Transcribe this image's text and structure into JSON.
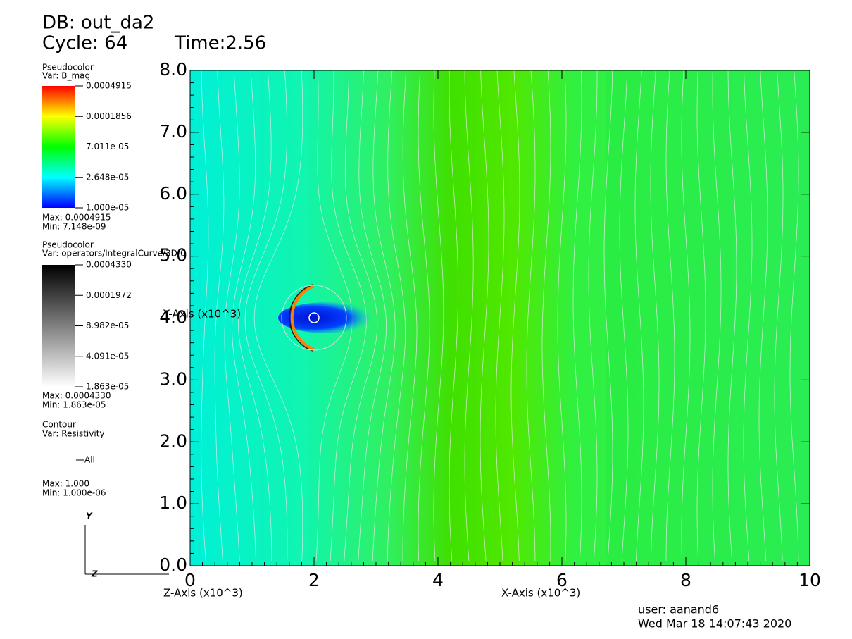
{
  "header": {
    "db": "DB: out_da2",
    "cycle": "Cycle: 64",
    "time": "Time:2.56"
  },
  "legends": [
    {
      "plot": "Pseudocolor",
      "var": "Var: B_mag",
      "ticks": [
        "0.0004915",
        "0.0001856",
        "7.011e-05",
        "2.648e-05",
        "1.000e-05"
      ],
      "max": "Max:  0.0004915",
      "min": "Min:  7.148e-09"
    },
    {
      "plot": "Pseudocolor",
      "var": "Var: operators/IntegralCurve/3D/0",
      "ticks": [
        "0.0004330",
        "0.0001972",
        "8.982e-05",
        "4.091e-05",
        "1.863e-05"
      ],
      "max": "Max:  0.0004330",
      "min": "Min:  1.863e-05"
    },
    {
      "plot": "Contour",
      "var": "Var: Resistivity",
      "level": "All",
      "max": "Max:  1.000",
      "min": "Min:  1.000e-06"
    }
  ],
  "chart_data": {
    "type": "pseudocolor",
    "xlabel": "X-Axis (x10^3)",
    "ylabel": "Y-Axis (x10^3)",
    "zlabel": "Z-Axis (x10^3)",
    "xlim": [
      0,
      10
    ],
    "ylim": [
      0,
      8
    ],
    "xticks": [
      0,
      2,
      4,
      6,
      8,
      10
    ],
    "yticks": [
      {
        "value": 0,
        "label": "0.0"
      },
      {
        "value": 1,
        "label": "1.0"
      },
      {
        "value": 2,
        "label": "2.0"
      },
      {
        "value": 3,
        "label": "3.0"
      },
      {
        "value": 4,
        "label": "4.0"
      },
      {
        "value": 5,
        "label": "5.0"
      },
      {
        "value": 6,
        "label": "6.0"
      },
      {
        "value": 7,
        "label": "7.0"
      },
      {
        "value": 8,
        "label": "8.0"
      }
    ]
  },
  "triad": {
    "y": "Y",
    "z": "Z"
  },
  "footer": {
    "user": "user: aanand6",
    "date": "Wed Mar 18 14:07:43 2020"
  }
}
